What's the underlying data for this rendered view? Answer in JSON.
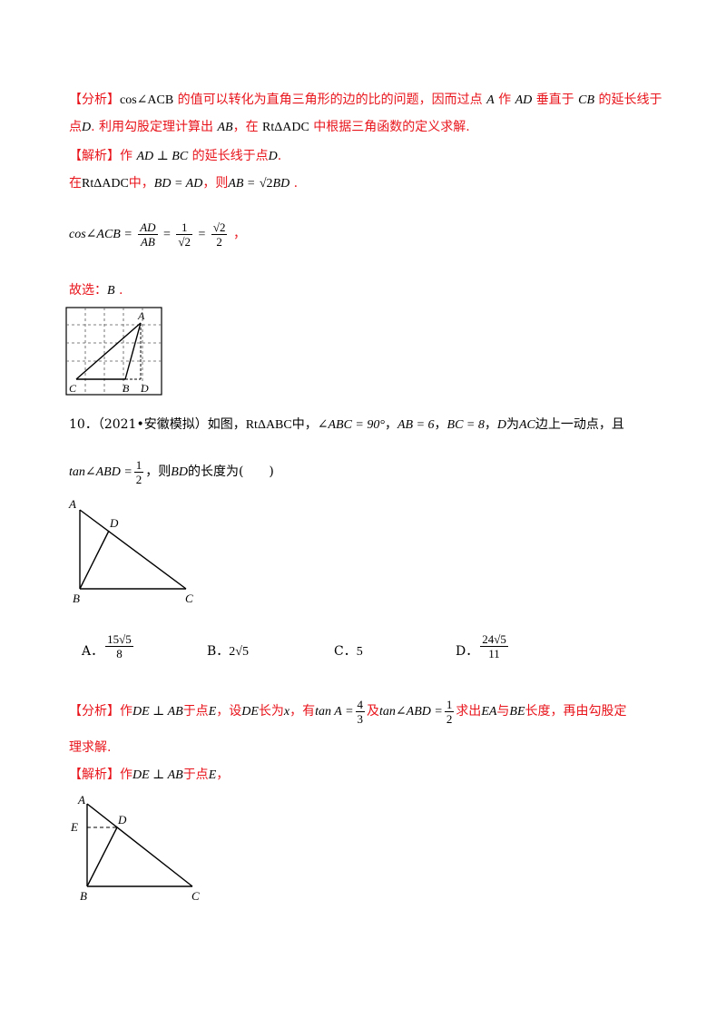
{
  "analysis1": {
    "tag": "【分析】",
    "expr": "cos∠ACB",
    "text_a": "的值可以转化为直角三角形的边的比的问题，因而过点",
    "point_a": "A",
    "text_b": "作",
    "seg_ad": "AD",
    "text_c": "垂直于",
    "seg_cb": "CB",
    "text_d": "的延长线于",
    "line2_a": "点",
    "point_d": "D",
    "line2_b": ". 利用勾股定理计算出",
    "seg_ab": "AB",
    "line2_c": "，在",
    "tri": "RtΔADC",
    "line2_d": "中根据三角函数的定义求解."
  },
  "solution1": {
    "tag": "【解析】",
    "text_a": "作",
    "perp": "AD ⊥ BC",
    "text_b": "的延长线于点",
    "point_d": "D",
    "text_c": ".",
    "line2_a": "在",
    "tri": "RtΔADC",
    "line2_b": "中，",
    "eq1": "BD = AD",
    "line2_c": "，则",
    "eq2_left": "AB =",
    "eq2_root": "√2",
    "eq2_right": "BD",
    "line2_d": ".",
    "cos_left": "cos∠ACB =",
    "f1_num": "AD",
    "f1_den": "AB",
    "eq_sign": "=",
    "f2_num": "1",
    "f2_den": "√2",
    "eq_sign2": "=",
    "f3_num": "√2",
    "f3_den": "2",
    "comma": "，",
    "choice_label": "故选：",
    "choice": "B",
    "choice_end": "."
  },
  "grid_figure": {
    "labels": {
      "a": "A",
      "b": "B",
      "c": "C",
      "d": "D"
    }
  },
  "question10": {
    "number": "10．",
    "source": "（2021•安徽模拟）如图，",
    "tri": "RtΔABC",
    "text_a": "中，",
    "angle": "∠ABC = 90°",
    "sep1": "，",
    "ab": "AB = 6",
    "sep2": "，",
    "bc": "BC = 8",
    "sep3": "，",
    "point_d": "D",
    "text_b": "为",
    "seg_ac": "AC",
    "text_c": "边上一动点，且",
    "tan_left": "tan∠ABD =",
    "tan_num": "1",
    "tan_den": "2",
    "text_d": "，则",
    "seg_bd": "BD",
    "text_e": "的长度为(　　)"
  },
  "triangle1": {
    "labels": {
      "a": "A",
      "b": "B",
      "c": "C",
      "d": "D"
    }
  },
  "options": {
    "a_label": "A．",
    "a_num": "15√5",
    "a_den": "8",
    "b_label": "B．",
    "b_value": "2√5",
    "c_label": "C．",
    "c_value": "5",
    "d_label": "D．",
    "d_num": "24√5",
    "d_den": "11"
  },
  "analysis2": {
    "tag": "【分析】",
    "text_a": "作",
    "perp": "DE ⊥ AB",
    "text_b": "于点",
    "point_e": "E",
    "text_c": "，设",
    "seg_de": "DE",
    "text_d": "长为",
    "var_x": "x",
    "text_e": "，有",
    "tan_a_left": "tan A =",
    "tan_a_num": "4",
    "tan_a_den": "3",
    "text_f": "及",
    "tan_abd_left": "tan∠ABD =",
    "tan_abd_num": "1",
    "tan_abd_den": "2",
    "text_g": "求出",
    "seg_ea": "EA",
    "text_h": "与",
    "seg_be": "BE",
    "text_i": "长度，再由勾股定",
    "line2": "理求解."
  },
  "solution2": {
    "tag": "【解析】",
    "text_a": "作",
    "perp": "DE ⊥ AB",
    "text_b": "于点",
    "point_e": "E",
    "text_c": "，"
  },
  "triangle2": {
    "labels": {
      "a": "A",
      "b": "B",
      "c": "C",
      "d": "D",
      "e": "E"
    }
  }
}
